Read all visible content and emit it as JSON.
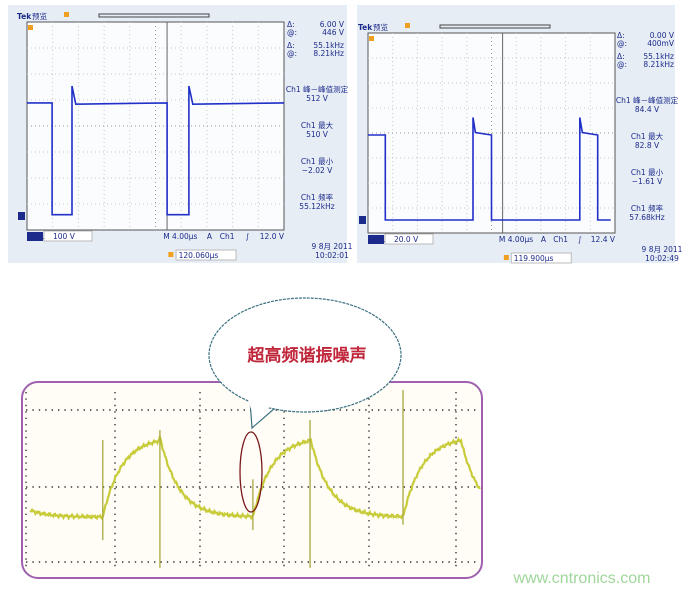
{
  "colors": {
    "scope_trace": "#2030c8",
    "scope_text": "#1c2a8c",
    "scope_bg": "#e6edf5",
    "marker_orange": "#f0a020",
    "noise_trace": "#c8cc3a",
    "frame_purple": "#a060b0",
    "bubble_outline": "#3a7080",
    "callout_text": "#c0263a",
    "highlight_ellipse": "#7a1a1a",
    "watermark": "#9fd69a"
  },
  "scopes": [
    {
      "brand": "Tek",
      "mode": "预览",
      "cursor": {
        "dv_label": "Δ:",
        "dv": "6.00 V",
        "av_label": "@:",
        "av": "446 V",
        "df_label": "Δ:",
        "df": "55.1kHz",
        "af_label": "@:",
        "af": "8.21kHz"
      },
      "measurements": [
        {
          "label": "Ch1 峰－峰值测定",
          "value": "512 V"
        },
        {
          "label": "Ch1 最大",
          "value": "510 V"
        },
        {
          "label": "Ch1 最小",
          "value": "−2.02 V"
        },
        {
          "label": "Ch1 频率",
          "value": "55.12kHz"
        }
      ],
      "channel": "Ch1",
      "volts_div": "100 V",
      "time_div": "M 4.00µs",
      "trigger": {
        "mode": "A",
        "source": "Ch1",
        "slope": "∫",
        "level": "12.0 V"
      },
      "date": "9 8月 2011",
      "time": "10:02:01",
      "position": "120.060µs"
    },
    {
      "brand": "Tek",
      "mode": "预览",
      "cursor": {
        "dv_label": "Δ:",
        "dv": "0.00 V",
        "av_label": "@:",
        "av": "400mV",
        "df_label": "Δ:",
        "df": "55.1kHz",
        "af_label": "@:",
        "af": "8.21kHz"
      },
      "measurements": [
        {
          "label": "Ch1 峰－峰值测定",
          "value": "84.4 V"
        },
        {
          "label": "Ch1 最大",
          "value": "82.8 V"
        },
        {
          "label": "Ch1 最小",
          "value": "−1.61 V"
        },
        {
          "label": "Ch1 频率",
          "value": "57.68kHz"
        }
      ],
      "channel": "Ch1",
      "volts_div": "20.0 V",
      "time_div": "M 4.00µs",
      "trigger": {
        "mode": "A",
        "source": "Ch1",
        "slope": "∫",
        "level": "12.4 V"
      },
      "date": "9 8月 2011",
      "time": "10:02:49",
      "position": "119.900µs"
    }
  ],
  "callout": {
    "text": "超高频谐振噪声"
  },
  "watermark": "www.cntronics.com",
  "chart_data": [
    {
      "type": "line",
      "title": "",
      "xlabel": "",
      "ylabel": "",
      "x_unit": "µs",
      "y_unit": "V",
      "xlim": [
        0,
        40
      ],
      "ylim": [
        -100,
        700
      ],
      "grid": true,
      "points": [
        [
          0,
          435
        ],
        [
          3.9,
          435
        ],
        [
          3.9,
          5
        ],
        [
          7.0,
          5
        ],
        [
          7.0,
          500
        ],
        [
          7.6,
          430
        ],
        [
          21.8,
          435
        ],
        [
          21.8,
          5
        ],
        [
          25.2,
          5
        ],
        [
          25.2,
          500
        ],
        [
          25.8,
          430
        ],
        [
          40,
          435
        ]
      ]
    },
    {
      "type": "line",
      "title": "",
      "xlabel": "",
      "ylabel": "",
      "x_unit": "µs",
      "y_unit": "V",
      "xlim": [
        0,
        40
      ],
      "ylim": [
        -20,
        140
      ],
      "grid": true,
      "points": [
        [
          0,
          68
        ],
        [
          2.8,
          68
        ],
        [
          2.8,
          0
        ],
        [
          17.0,
          0
        ],
        [
          17.0,
          82
        ],
        [
          17.4,
          70
        ],
        [
          20.0,
          68
        ],
        [
          20.0,
          0
        ],
        [
          34.3,
          0
        ],
        [
          34.3,
          82
        ],
        [
          34.7,
          70
        ],
        [
          37.2,
          68
        ],
        [
          37.2,
          0
        ],
        [
          39.3,
          0
        ]
      ]
    },
    {
      "type": "line",
      "title": "",
      "xlabel": "",
      "ylabel": "",
      "x_unit": "div",
      "y_unit": "div",
      "xlim": [
        0,
        5.4
      ],
      "ylim": [
        -1,
        1.6
      ],
      "grid": true,
      "low_level": -0.39,
      "high_level": 0.65,
      "rise_edges": [
        0.9,
        2.66,
        4.42
      ],
      "fall_edges": [
        1.57,
        3.33,
        5.09
      ],
      "spikes": [
        {
          "x": 0.9,
          "top": 0.61,
          "bottom": -0.69
        },
        {
          "x": 1.57,
          "top": 0.74,
          "bottom": -1.05
        },
        {
          "x": 2.66,
          "top": 0.1,
          "bottom": -0.56
        },
        {
          "x": 3.33,
          "top": 0.87,
          "bottom": -1.05
        },
        {
          "x": 4.42,
          "top": 1.26,
          "bottom": -0.49
        }
      ]
    }
  ]
}
